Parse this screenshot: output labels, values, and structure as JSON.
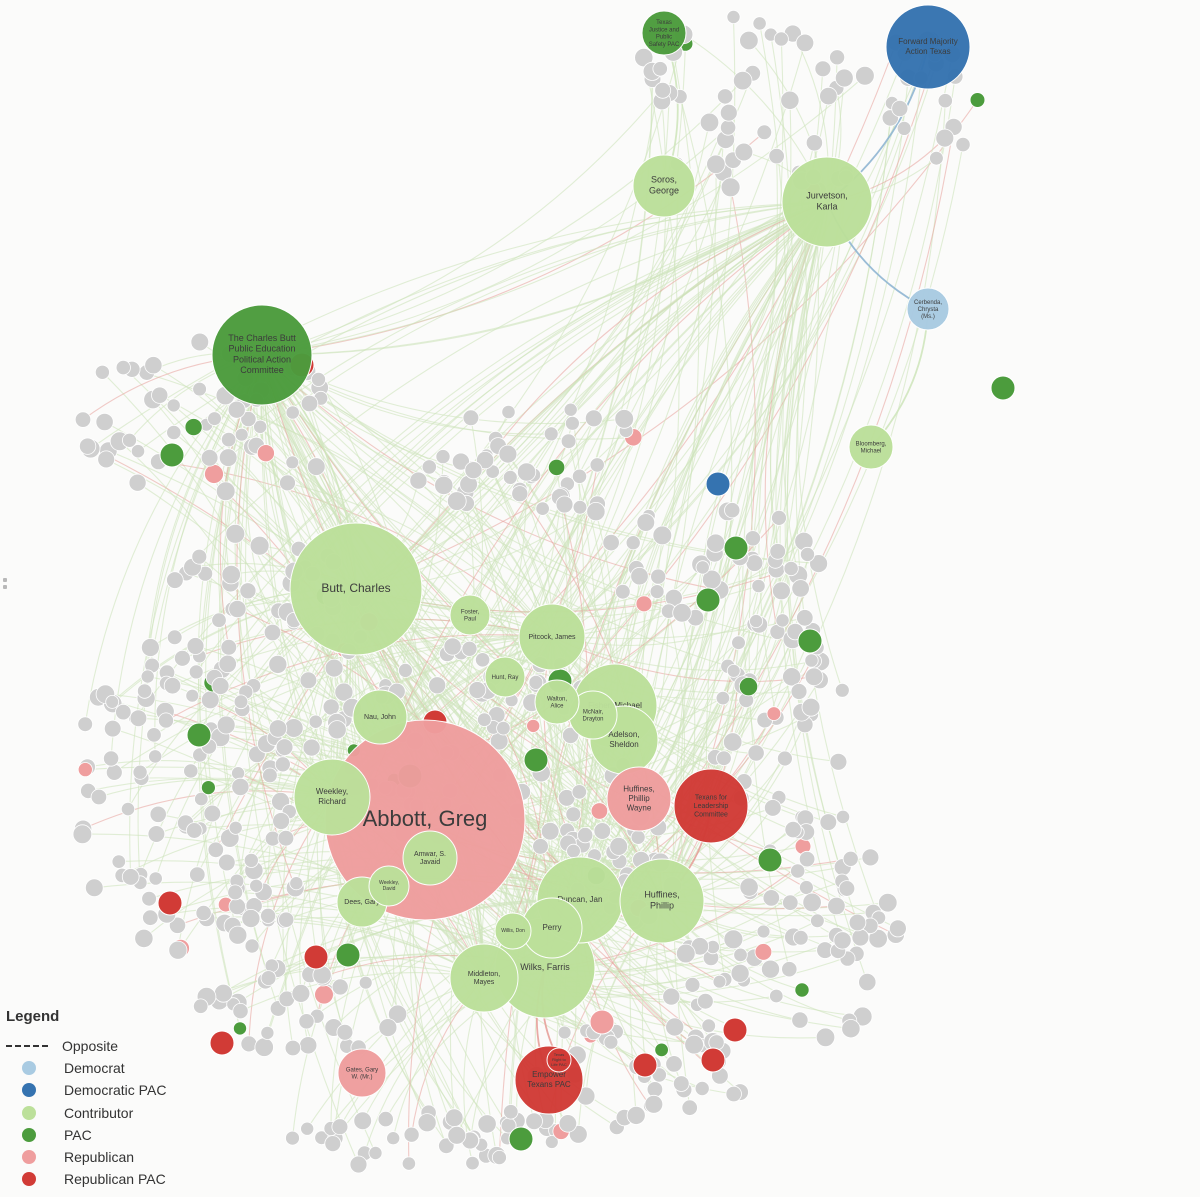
{
  "colors": {
    "democrat": "#a9cbe2",
    "democratic_pac": "#3573b0",
    "contributor": "#bce09a",
    "pac": "#4c9c3d",
    "republican": "#ef9e9e",
    "republican_pac": "#d13b36",
    "other": "#cfcfcf",
    "edge_green": "#cfe5bd",
    "edge_red": "#e7a09a",
    "edge_blue": "#8fb5d2"
  },
  "legend": {
    "title": "Legend",
    "items": [
      {
        "label": "Opposite",
        "kind": "dash"
      },
      {
        "label": "Democrat",
        "kind": "democrat"
      },
      {
        "label": "Democratic PAC",
        "kind": "democratic_pac"
      },
      {
        "label": "Contributor",
        "kind": "contributor"
      },
      {
        "label": "PAC",
        "kind": "pac"
      },
      {
        "label": "Republican",
        "kind": "republican"
      },
      {
        "label": "Republican PAC",
        "kind": "republican_pac"
      }
    ]
  },
  "nodes": [
    {
      "id": "soros",
      "label": "Soros, George",
      "type": "contributor"
    },
    {
      "id": "jurvetson",
      "label": "Jurvetson, Karla",
      "type": "contributor"
    },
    {
      "id": "forward",
      "label": "Forward Majority Action Texas",
      "type": "democratic_pac"
    },
    {
      "id": "txjustice",
      "label": "Texas Justice and Public Safety PAC",
      "type": "pac"
    },
    {
      "id": "cerbenda",
      "label": "Cerbenda, Chrysta (Ms.)",
      "type": "democrat"
    },
    {
      "id": "bloomberg",
      "label": "Bloomberg, Michael",
      "type": "contributor"
    },
    {
      "id": "butt_pac",
      "label": "The Charles Butt Public Education Political Action Committee",
      "type": "pac"
    },
    {
      "id": "butt",
      "label": "Butt, Charles",
      "type": "contributor"
    },
    {
      "id": "foster",
      "label": "Foster, Paul",
      "type": "contributor"
    },
    {
      "id": "pitcock",
      "label": "Pitcock, James",
      "type": "contributor"
    },
    {
      "id": "hunt",
      "label": "Hunt, Ray",
      "type": "contributor"
    },
    {
      "id": "nau",
      "label": "Nau, John",
      "type": "contributor"
    },
    {
      "id": "walton",
      "label": "Walton, Alice",
      "type": "contributor"
    },
    {
      "id": "fisher",
      "label": "Fisher, Michael",
      "type": "contributor"
    },
    {
      "id": "mcnair",
      "label": "McNair, Drayton",
      "type": "contributor"
    },
    {
      "id": "adelson",
      "label": "Adelson, Sheldon",
      "type": "contributor"
    },
    {
      "id": "abbott",
      "label": "Abbott, Greg",
      "type": "republican"
    },
    {
      "id": "weekley",
      "label": "Weekley, Richard",
      "type": "contributor"
    },
    {
      "id": "huffines_pw",
      "label": "Huffines, Phillip Wayne",
      "type": "republican"
    },
    {
      "id": "huffines_p",
      "label": "Huffines, Phillip",
      "type": "contributor"
    },
    {
      "id": "leadership",
      "label": "Texans for Leadership Committee",
      "type": "republican_pac"
    },
    {
      "id": "amwar",
      "label": "Amwar, S. Javaid",
      "type": "contributor"
    },
    {
      "id": "weekley_d",
      "label": "Weekley, David",
      "type": "contributor"
    },
    {
      "id": "dees",
      "label": "Dees, Gary",
      "type": "contributor"
    },
    {
      "id": "duncan",
      "label": "Duncan, Jan",
      "type": "contributor"
    },
    {
      "id": "perry",
      "label": "Perry",
      "type": "contributor"
    },
    {
      "id": "willis",
      "label": "Willis, Don",
      "type": "contributor"
    },
    {
      "id": "middleton",
      "label": "Middleton, Mayes",
      "type": "contributor"
    },
    {
      "id": "wilks",
      "label": "Wilks, Farris",
      "type": "contributor"
    },
    {
      "id": "empower",
      "label": "Empower Texans PAC",
      "type": "republican_pac"
    },
    {
      "id": "gates",
      "label": "Gates, Gary W. (Mr.)",
      "type": "republican"
    },
    {
      "id": "texasright",
      "label": "Texas Right to Life PAC",
      "type": "republican_pac"
    }
  ],
  "edges": [
    {
      "source": "soros",
      "target": "txjustice",
      "kind": "green"
    },
    {
      "source": "jurvetson",
      "target": "forward",
      "kind": "blue"
    },
    {
      "source": "jurvetson",
      "target": "cerbenda",
      "kind": "blue"
    },
    {
      "source": "bloomberg",
      "target": "cerbenda",
      "kind": "green"
    },
    {
      "source": "butt",
      "target": "butt_pac",
      "kind": "green"
    },
    {
      "source": "wilks",
      "target": "empower",
      "kind": "red"
    },
    {
      "source": "huffines_p",
      "target": "leadership",
      "kind": "red"
    },
    {
      "source": "weekley",
      "target": "abbott",
      "kind": "green"
    },
    {
      "source": "wilks",
      "target": "texasright",
      "kind": "red"
    }
  ]
}
